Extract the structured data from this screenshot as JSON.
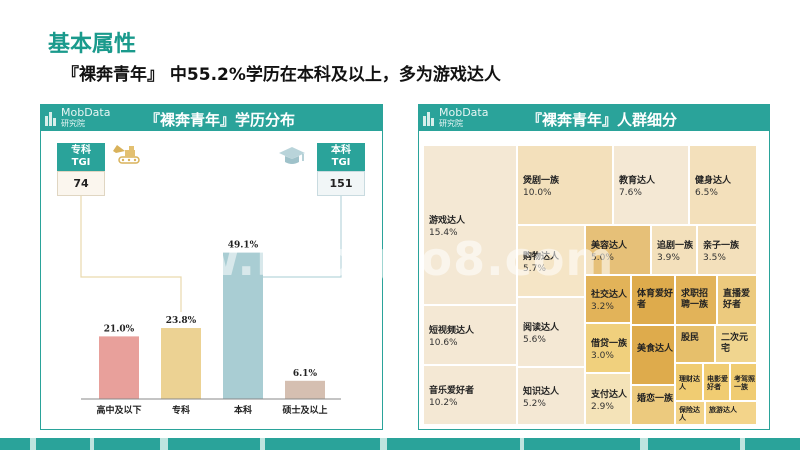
{
  "page": {
    "title": "基本属性",
    "subtitle": "『裸奔青年』 中55.2%学历在本科及以上，多为游戏达人",
    "watermark": "www.baogao8.com"
  },
  "logo": {
    "name": "MobData",
    "sub": "研究院"
  },
  "left_panel": {
    "title": "『裸奔青年』学历分布",
    "tgi_left": {
      "head1": "专科",
      "head2": "TGI",
      "value": "74"
    },
    "tgi_right": {
      "head1": "本科",
      "head2": "TGI",
      "value": "151"
    }
  },
  "right_panel": {
    "title": "『裸奔青年』人群细分"
  },
  "colors": {
    "accent": "#2aa39a",
    "title": "#1a9a8c"
  },
  "chart_data": [
    {
      "type": "bar",
      "title": "『裸奔青年』学历分布",
      "categories": [
        "高中及以下",
        "专科",
        "本科",
        "硕士及以上"
      ],
      "values": [
        21.0,
        23.8,
        49.1,
        6.1
      ],
      "value_labels": [
        "21.0%",
        "23.8%",
        "49.1%",
        "6.1%"
      ],
      "colors": [
        "#e8a09b",
        "#ecd293",
        "#a9cdd3",
        "#d5bfb1"
      ],
      "ylim": [
        0,
        55
      ],
      "grid": false,
      "annotations": [
        {
          "label": "专科 TGI",
          "value": 74
        },
        {
          "label": "本科 TGI",
          "value": 151
        }
      ]
    },
    {
      "type": "treemap",
      "title": "『裸奔青年』人群细分",
      "items": [
        {
          "name": "游戏达人",
          "value": "15.4%"
        },
        {
          "name": "短视频达人",
          "value": "10.6%"
        },
        {
          "name": "音乐爱好者",
          "value": "10.2%"
        },
        {
          "name": "煲剧一族",
          "value": "10.0%"
        },
        {
          "name": "教育达人",
          "value": "7.6%"
        },
        {
          "name": "健身达人",
          "value": "6.5%"
        },
        {
          "name": "购物达人",
          "value": "5.7%"
        },
        {
          "name": "美容达人",
          "value": "5.0%"
        },
        {
          "name": "追剧一族",
          "value": "3.9%"
        },
        {
          "name": "亲子一族",
          "value": "3.5%"
        },
        {
          "name": "阅读达人",
          "value": "5.6%"
        },
        {
          "name": "知识达人",
          "value": "5.2%"
        },
        {
          "name": "社交达人",
          "value": "3.2%"
        },
        {
          "name": "借贷一族",
          "value": "3.0%"
        },
        {
          "name": "支付达人",
          "value": "2.9%"
        },
        {
          "name": "体育爱好者",
          "value": ""
        },
        {
          "name": "求职招聘一族",
          "value": ""
        },
        {
          "name": "直播爱好者",
          "value": ""
        },
        {
          "name": "股民",
          "value": ""
        },
        {
          "name": "二次元宅",
          "value": ""
        },
        {
          "name": "美食达人",
          "value": ""
        },
        {
          "name": "婚恋一族",
          "value": ""
        },
        {
          "name": "理财达人",
          "value": ""
        },
        {
          "name": "电影爱好者",
          "value": ""
        },
        {
          "name": "考驾照一族",
          "value": ""
        },
        {
          "name": "保险达人",
          "value": ""
        },
        {
          "name": "旅游达人",
          "value": ""
        }
      ]
    }
  ]
}
